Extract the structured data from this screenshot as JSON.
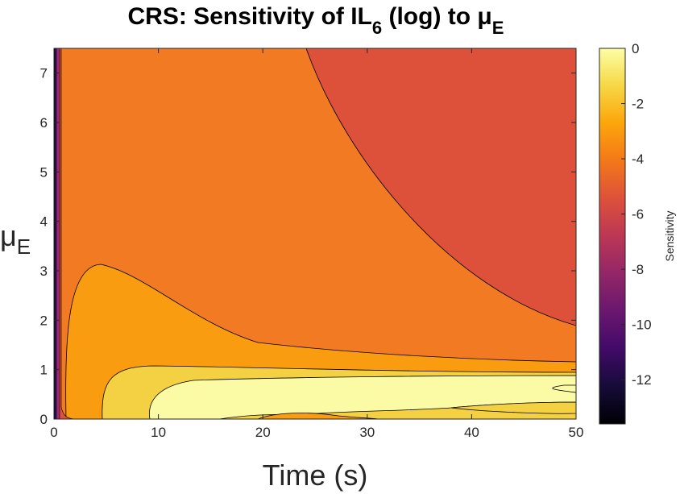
{
  "chart_data": {
    "type": "contour",
    "title": {
      "prefix": "CRS: Sensitivity of IL",
      "sub": "6",
      "middle": " (log) to μ",
      "sub2": "E"
    },
    "xlabel": "Time (s)",
    "ylabel": {
      "base": "μ",
      "sub": "E"
    },
    "xlim": [
      0,
      50
    ],
    "ylim": [
      0,
      7.5
    ],
    "xticks": [
      0,
      10,
      20,
      30,
      40,
      50
    ],
    "yticks": [
      0,
      1,
      2,
      3,
      4,
      5,
      6,
      7
    ],
    "colorbar": {
      "label": "Sensitivity",
      "colormap": "inferno",
      "clim": [
        -13.6,
        0
      ],
      "ticks": [
        0,
        -2,
        -4,
        -6,
        -8,
        -10,
        -12
      ]
    },
    "contour_levels": [
      -13,
      -11,
      -9,
      -7,
      -5,
      -3,
      -1.8,
      -1
    ],
    "regions": [
      {
        "name": "sensitivity-approx--5.6",
        "value": -5.6,
        "color": "#dd513a"
      },
      {
        "name": "sensitivity-approx--3.9",
        "value": -3.9,
        "color": "#f17a22"
      },
      {
        "name": "sensitivity-approx--2.5",
        "value": -2.5,
        "color": "#f99c10"
      },
      {
        "name": "sensitivity-approx--1.3",
        "value": -1.3,
        "color": "#f4d143"
      },
      {
        "name": "sensitivity-approx--0.4",
        "value": -0.4,
        "color": "#fafba4"
      }
    ]
  }
}
